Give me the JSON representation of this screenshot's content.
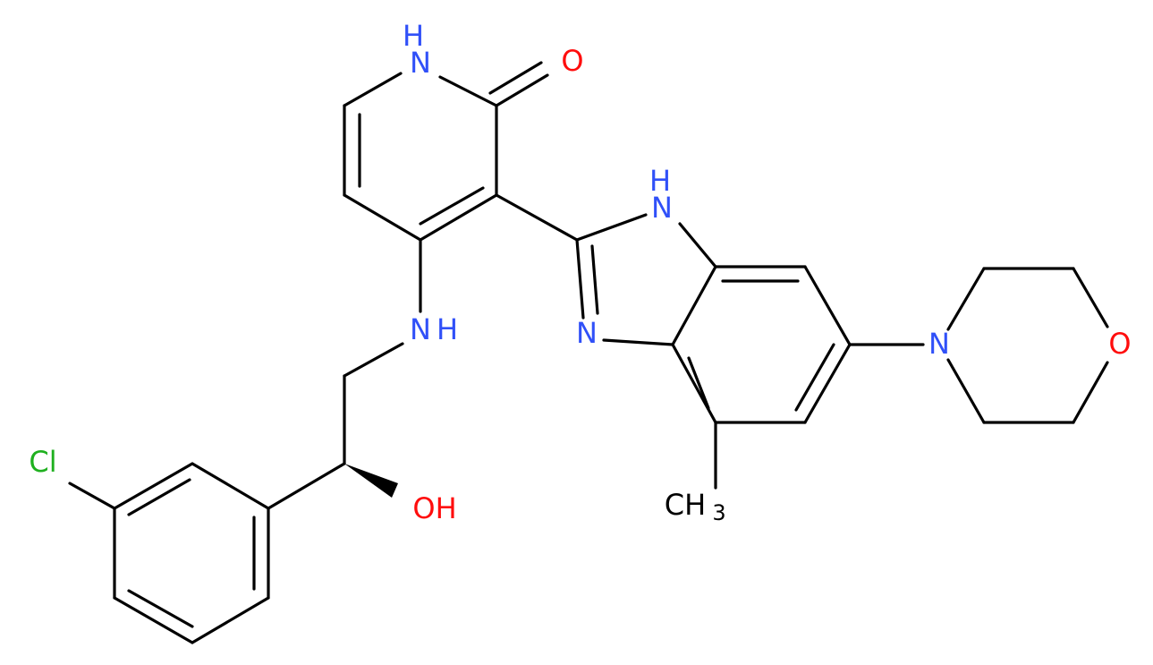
{
  "atoms": [
    {
      "label": "N",
      "hydrogen": "H",
      "kind": "N"
    },
    {
      "label": "O",
      "kind": "O"
    },
    {
      "label": "N",
      "hydrogen": "H",
      "kind": "N"
    },
    {
      "label": "N",
      "kind": "N"
    },
    {
      "label": "N",
      "kind": "N"
    },
    {
      "label": "O",
      "kind": "O"
    },
    {
      "label": "N",
      "hydrogen": "H",
      "kind": "N"
    },
    {
      "label": "Cl",
      "kind": "Cl"
    },
    {
      "label": "OH",
      "kind": "O"
    },
    {
      "label": "CH",
      "subscript": "3",
      "kind": "C"
    }
  ]
}
